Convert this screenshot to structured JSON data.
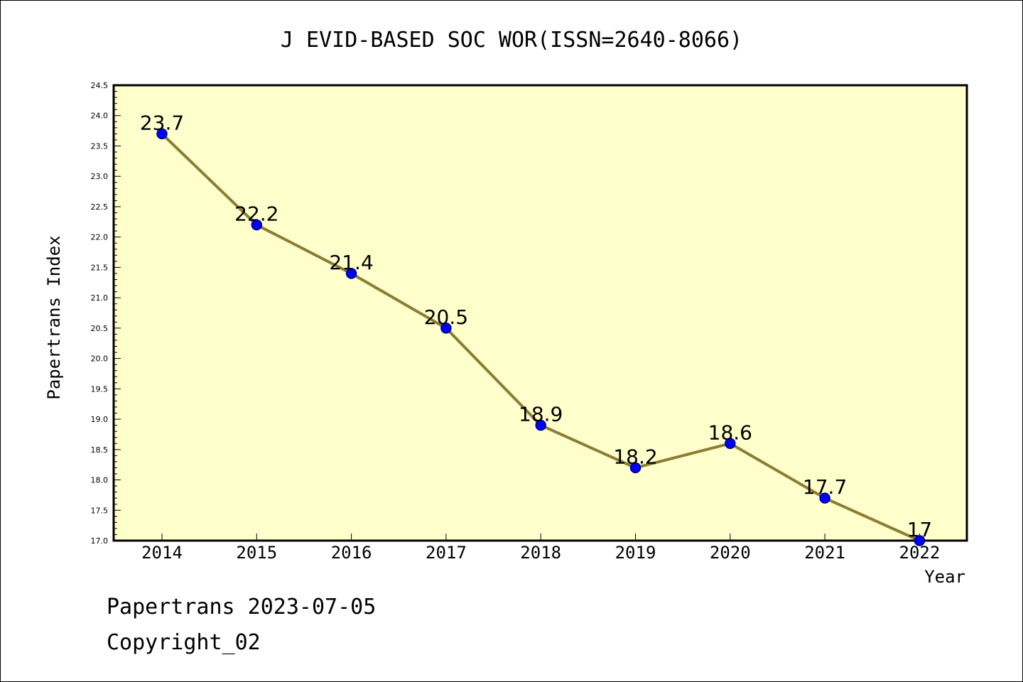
{
  "chart_data": {
    "type": "line",
    "title": "J EVID-BASED SOC WOR(ISSN=2640-8066)",
    "xlabel": "Year",
    "ylabel": "Papertrans Index",
    "categories": [
      "2014",
      "2015",
      "2016",
      "2017",
      "2018",
      "2019",
      "2020",
      "2021",
      "2022"
    ],
    "series": [
      {
        "values": [
          23.7,
          22.2,
          21.4,
          20.5,
          18.9,
          18.2,
          18.6,
          17.7,
          17.0
        ],
        "data_labels": [
          "23.7",
          "22.2",
          "21.4",
          "20.5",
          "18.9",
          "18.2",
          "18.6",
          "17.7",
          "17"
        ]
      }
    ],
    "ylim": [
      17.0,
      24.5
    ],
    "yticks": [
      "17.0",
      "17.5",
      "18.0",
      "18.5",
      "19.0",
      "19.5",
      "20.0",
      "20.5",
      "21.0",
      "21.5",
      "22.0",
      "22.5",
      "23.0",
      "23.5",
      "24.0",
      "24.5"
    ],
    "grid": false,
    "colors": {
      "plot_background": "#ffffcc",
      "line": "#8b7d35",
      "marker_fill": "#0000ff",
      "marker_edge": "#000080"
    }
  },
  "footer": {
    "line1": "Papertrans 2023-07-05",
    "line2": "Copyright_02"
  }
}
